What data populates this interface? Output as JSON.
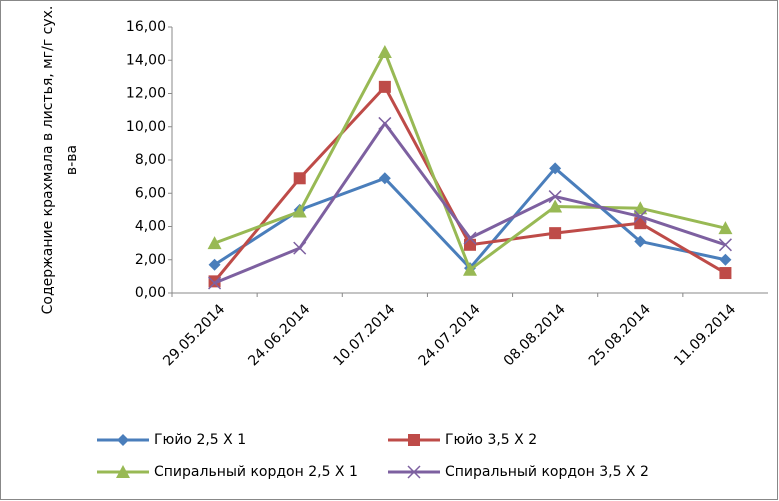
{
  "chart_data": {
    "type": "line",
    "y_label": [
      "Содержание крахмала в листья, мг/г сух.",
      "в-ва"
    ],
    "categories": [
      "29.05.2014",
      "24.06.2014",
      "10.07.2014",
      "24.07.2014",
      "08.08.2014",
      "25.08.2014",
      "11.09.2014"
    ],
    "series": [
      {
        "name": "Гюйо 2,5 Х 1",
        "color": "#4a7ebb",
        "marker": "diamond",
        "values": [
          1.7,
          5.0,
          6.9,
          1.5,
          7.5,
          3.1,
          2.0
        ]
      },
      {
        "name": "Гюйо 3,5 Х 2",
        "color": "#be4b48",
        "marker": "square",
        "values": [
          0.7,
          6.9,
          12.4,
          2.9,
          3.6,
          4.2,
          1.2
        ]
      },
      {
        "name": "Спиральный кордон 2,5 Х 1",
        "color": "#98b954",
        "marker": "triangle",
        "values": [
          3.0,
          4.9,
          14.5,
          1.4,
          5.2,
          5.1,
          3.9
        ]
      },
      {
        "name": "Спиральный кордон 3,5 Х 2",
        "color": "#7d60a0",
        "marker": "x",
        "values": [
          0.6,
          2.7,
          10.2,
          3.3,
          5.8,
          4.6,
          2.9
        ]
      }
    ],
    "ylim": [
      0,
      16
    ],
    "yticks": [
      {
        "value": 0,
        "label": "0,00"
      },
      {
        "value": 2,
        "label": "2,00"
      },
      {
        "value": 4,
        "label": "4,00"
      },
      {
        "value": 6,
        "label": "6,00"
      },
      {
        "value": 8,
        "label": "8,00"
      },
      {
        "value": 10,
        "label": "10,00"
      },
      {
        "value": 12,
        "label": "12,00"
      },
      {
        "value": 14,
        "label": "14,00"
      },
      {
        "value": 16,
        "label": "16,00"
      }
    ],
    "grid": false
  }
}
